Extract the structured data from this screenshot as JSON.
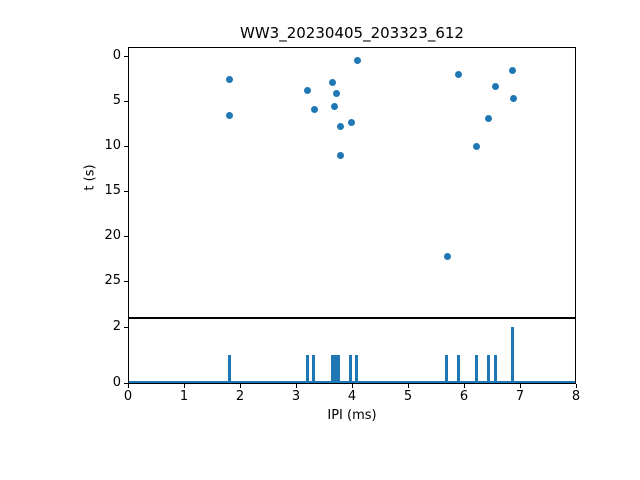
{
  "figure": {
    "title": "WW3_20230405_203323_612",
    "background": "#ffffff",
    "accent_color": "#1f77b4",
    "axis_color": "#000000"
  },
  "chart_data": [
    {
      "type": "scatter",
      "title": "WW3_20230405_203323_612",
      "xlabel": "IPI (ms)",
      "ylabel": "t (s)",
      "xlim": [
        0,
        8
      ],
      "ylim": [
        29,
        -1
      ],
      "y_inverted": true,
      "yticks": [
        0,
        5,
        10,
        15,
        20,
        25
      ],
      "grid": false,
      "legend": "none",
      "marker_color": "#1f77b4",
      "points": [
        {
          "x": 1.82,
          "y": 2.6
        },
        {
          "x": 1.82,
          "y": 6.6
        },
        {
          "x": 3.2,
          "y": 3.8
        },
        {
          "x": 3.33,
          "y": 5.9
        },
        {
          "x": 3.66,
          "y": 2.9
        },
        {
          "x": 3.73,
          "y": 4.2
        },
        {
          "x": 3.68,
          "y": 5.6
        },
        {
          "x": 3.79,
          "y": 7.8
        },
        {
          "x": 3.99,
          "y": 7.4
        },
        {
          "x": 3.79,
          "y": 11.1
        },
        {
          "x": 4.1,
          "y": 0.5
        },
        {
          "x": 5.7,
          "y": 22.3
        },
        {
          "x": 5.91,
          "y": 2.0
        },
        {
          "x": 6.23,
          "y": 10.0
        },
        {
          "x": 6.44,
          "y": 6.9
        },
        {
          "x": 6.57,
          "y": 3.4
        },
        {
          "x": 6.87,
          "y": 1.6
        },
        {
          "x": 6.88,
          "y": 4.7
        }
      ]
    },
    {
      "type": "bar",
      "xlabel": "IPI (ms)",
      "ylabel": "",
      "xlim": [
        0,
        8
      ],
      "ylim": [
        0,
        2.36
      ],
      "yticks": [
        0,
        2
      ],
      "xticks": [
        0,
        1,
        2,
        3,
        4,
        5,
        6,
        7,
        8
      ],
      "grid": false,
      "bar_color": "#1f77b4",
      "bar_width_ms": 0.05,
      "baseline_drawn": true,
      "bars": [
        {
          "x": 1.82,
          "count": 1
        },
        {
          "x": 3.2,
          "count": 1
        },
        {
          "x": 3.32,
          "count": 1
        },
        {
          "x": 3.65,
          "count": 1
        },
        {
          "x": 3.7,
          "count": 1
        },
        {
          "x": 3.76,
          "count": 1
        },
        {
          "x": 3.97,
          "count": 1
        },
        {
          "x": 4.08,
          "count": 1
        },
        {
          "x": 5.69,
          "count": 1
        },
        {
          "x": 5.91,
          "count": 1
        },
        {
          "x": 6.23,
          "count": 1
        },
        {
          "x": 6.44,
          "count": 1
        },
        {
          "x": 6.57,
          "count": 1
        },
        {
          "x": 6.87,
          "count": 2
        }
      ]
    }
  ]
}
